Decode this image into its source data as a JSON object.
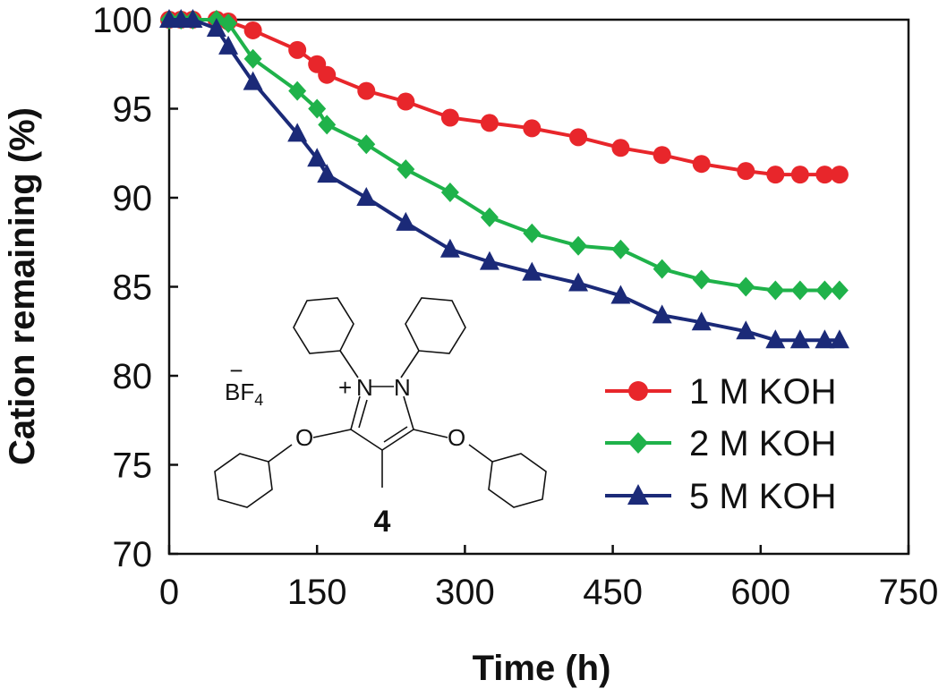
{
  "chart_data": {
    "type": "line",
    "xlabel": "Time (h)",
    "ylabel": "Cation remaining (%)",
    "xlim": [
      0,
      750
    ],
    "ylim": [
      70,
      100
    ],
    "xticks": [
      0,
      150,
      300,
      450,
      600,
      750
    ],
    "yticks": [
      70,
      75,
      80,
      85,
      90,
      95,
      100
    ],
    "xtick_labels": [
      "0",
      "150",
      "300",
      "450",
      "600",
      "750"
    ],
    "ytick_labels": [
      "70",
      "75",
      "80",
      "85",
      "90",
      "95",
      "100"
    ],
    "grid": false,
    "legend_position": "bottom-right",
    "series": [
      {
        "name": "1 M KOH",
        "color": "#e8262b",
        "marker": "circle",
        "x": [
          0,
          12,
          24,
          48,
          60,
          85,
          130,
          150,
          160,
          200,
          240,
          285,
          325,
          368,
          415,
          458,
          500,
          540,
          585,
          615,
          640,
          665,
          680
        ],
        "y": [
          100,
          100,
          100,
          100,
          99.9,
          99.4,
          98.3,
          97.5,
          96.9,
          96.0,
          95.4,
          94.5,
          94.2,
          93.9,
          93.4,
          92.8,
          92.4,
          91.9,
          91.5,
          91.3,
          91.3,
          91.3,
          91.3
        ]
      },
      {
        "name": "2 M KOH",
        "color": "#1fb24a",
        "marker": "diamond",
        "x": [
          0,
          12,
          24,
          48,
          60,
          85,
          130,
          150,
          160,
          200,
          240,
          285,
          325,
          368,
          415,
          458,
          500,
          540,
          585,
          615,
          640,
          665,
          680
        ],
        "y": [
          100,
          100,
          100,
          100,
          99.8,
          97.8,
          96.0,
          95.0,
          94.1,
          93.0,
          91.6,
          90.3,
          88.9,
          88.0,
          87.3,
          87.1,
          86.0,
          85.4,
          85.0,
          84.8,
          84.8,
          84.8,
          84.8
        ]
      },
      {
        "name": "5 M KOH",
        "color": "#1b2a78",
        "marker": "triangle",
        "x": [
          0,
          12,
          24,
          48,
          60,
          85,
          130,
          150,
          160,
          200,
          240,
          285,
          325,
          368,
          415,
          458,
          500,
          540,
          585,
          615,
          640,
          665,
          680
        ],
        "y": [
          100,
          100,
          100,
          99.5,
          98.5,
          96.5,
          93.6,
          92.2,
          91.3,
          90.0,
          88.6,
          87.1,
          86.4,
          85.8,
          85.2,
          84.5,
          83.4,
          83.0,
          82.5,
          82.0,
          82.0,
          82.0,
          82.0
        ]
      }
    ],
    "annotation": {
      "compound_number": "4",
      "counterion": "BF4",
      "counterion_charge": "−",
      "cation_charge": "+",
      "atom_n": "N",
      "atom_o": "O",
      "bond_dash": "–"
    }
  }
}
